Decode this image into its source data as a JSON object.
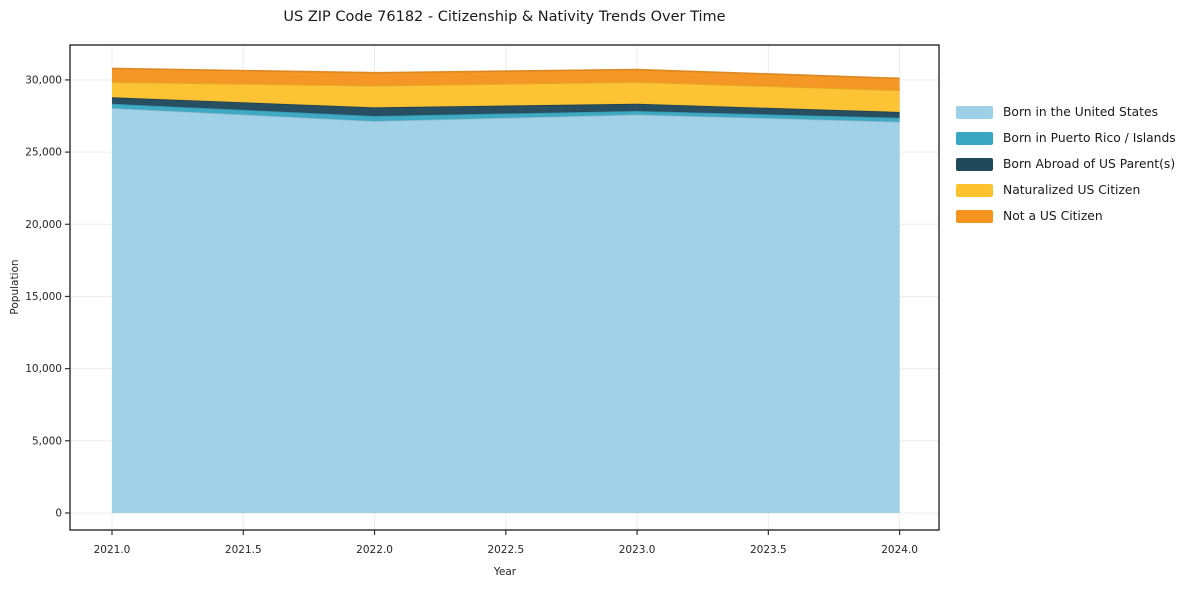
{
  "chart_data": {
    "type": "area",
    "stacked": true,
    "title": "US ZIP Code 76182 - Citizenship & Nativity Trends Over Time",
    "xlabel": "Year",
    "ylabel": "Population",
    "x": [
      2021.0,
      2022.0,
      2023.0,
      2024.0
    ],
    "series": [
      {
        "name": "Born in the United States",
        "color": "#9dd0e6",
        "values": [
          28050,
          27150,
          27600,
          27100
        ]
      },
      {
        "name": "Born in Puerto Rico / Islands",
        "color": "#3aa7c2",
        "values": [
          300,
          350,
          250,
          280
        ]
      },
      {
        "name": "Born Abroad of US Parent(s)",
        "color": "#21495c",
        "values": [
          450,
          600,
          500,
          400
        ]
      },
      {
        "name": "Naturalized US Citizen",
        "color": "#fcc22d",
        "values": [
          1050,
          1500,
          1500,
          1500
        ]
      },
      {
        "name": "Not a US Citizen",
        "color": "#f5941f",
        "values": [
          950,
          900,
          870,
          830
        ]
      }
    ],
    "xticks": [
      2021.0,
      2021.5,
      2022.0,
      2022.5,
      2023.0,
      2023.5,
      2024.0
    ],
    "xticklabels": [
      "2021.0",
      "2021.5",
      "2022.0",
      "2022.5",
      "2023.0",
      "2023.5",
      "2024.0"
    ],
    "yticks": [
      0,
      5000,
      10000,
      15000,
      20000,
      25000,
      30000
    ],
    "yticklabels": [
      "0",
      "5,000",
      "10,000",
      "15,000",
      "20,000",
      "25,000",
      "30,000"
    ],
    "xlim": [
      2020.84,
      2024.15
    ],
    "ylim": [
      -1180,
      32420
    ],
    "grid": true,
    "legend_position": "right-outside",
    "colors": {
      "grid": "#ececec",
      "spine": "#1a1a1a",
      "tick": "#333333",
      "text": "#262626"
    }
  }
}
